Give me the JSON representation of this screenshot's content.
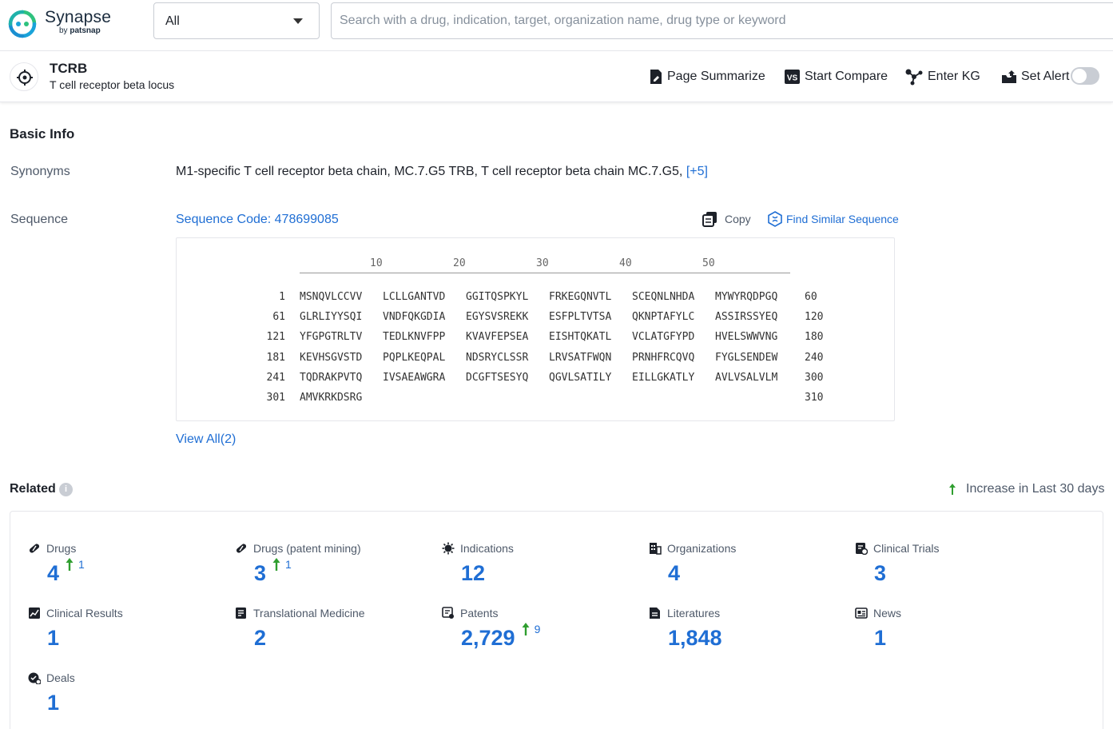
{
  "brand": {
    "name": "Synapse",
    "by": "by",
    "by_brand": "patsnap"
  },
  "search": {
    "scope": "All",
    "placeholder": "Search with a drug, indication, target, organization name, drug type or keyword"
  },
  "target": {
    "symbol": "TCRB",
    "name": "T cell receptor beta locus"
  },
  "actions": {
    "summarize": "Page Summarize",
    "compare": "Start Compare",
    "compare_badge": "VS",
    "kg": "Enter KG",
    "alert": "Set Alert",
    "alert_enabled": false
  },
  "basic_info": {
    "title": "Basic Info",
    "synonyms_label": "Synonyms",
    "synonyms": "M1-specific T cell receptor beta chain,  MC.7.G5 TRB,  T cell receptor beta chain MC.7.G5,",
    "synonyms_more": "[+5]",
    "sequence_label": "Sequence",
    "sequence_code": "Sequence Code: 478699085",
    "copy": "Copy",
    "find_similar": "Find Similar Sequence",
    "ruler": [
      "10",
      "20",
      "30",
      "40",
      "50"
    ],
    "rows": [
      {
        "start": "1",
        "segments": [
          "MSNQVLCCVV",
          "LCLLGANTVD",
          "GGITQSPKYL",
          "FRKEGQNVTL",
          "SCEQNLNHDA",
          "MYWYRQDPGQ"
        ],
        "end": "60"
      },
      {
        "start": "61",
        "segments": [
          "GLRLIYYSQI",
          "VNDFQKGDIA",
          "EGYSVSREKK",
          "ESFPLTVTSA",
          "QKNPTAFYLC",
          "ASSIRSSYEQ"
        ],
        "end": "120"
      },
      {
        "start": "121",
        "segments": [
          "YFGPGTRLTV",
          "TEDLKNVFPP",
          "KVAVFEPSEA",
          "EISHTQKATL",
          "VCLATGFYPD",
          "HVELSWWVNG"
        ],
        "end": "180"
      },
      {
        "start": "181",
        "segments": [
          "KEVHSGVSTD",
          "PQPLKEQPAL",
          "NDSRYCLSSR",
          "LRVSATFWQN",
          "PRNHFRCQVQ",
          "FYGLSENDEW"
        ],
        "end": "240"
      },
      {
        "start": "241",
        "segments": [
          "TQDRAKPVTQ",
          "IVSAEAWGRA",
          "DCGFTSESYQ",
          "QGVLSATILY",
          "EILLGKATLY",
          "AVLVSALVLM"
        ],
        "end": "300"
      },
      {
        "start": "301",
        "segments": [
          "AMVKRKDSRG",
          "",
          "",
          "",
          "",
          ""
        ],
        "end": "310"
      }
    ],
    "view_all": "View All(2)"
  },
  "related": {
    "title": "Related",
    "info": "i",
    "increase_label": "Increase in Last 30 days",
    "items": [
      {
        "label": "Drugs",
        "icon": "pill-icon",
        "value": "4",
        "delta": "1"
      },
      {
        "label": "Drugs (patent mining)",
        "icon": "pill-icon",
        "value": "3",
        "delta": "1"
      },
      {
        "label": "Indications",
        "icon": "virus-icon",
        "value": "12",
        "delta": ""
      },
      {
        "label": "Organizations",
        "icon": "building-icon",
        "value": "4",
        "delta": ""
      },
      {
        "label": "Clinical Trials",
        "icon": "clipboard-icon",
        "value": "3",
        "delta": ""
      },
      {
        "label": "Clinical Results",
        "icon": "chart-doc-icon",
        "value": "1",
        "delta": ""
      },
      {
        "label": "Translational Medicine",
        "icon": "document-icon",
        "value": "2",
        "delta": ""
      },
      {
        "label": "Patents",
        "icon": "patent-icon",
        "value": "2,729",
        "delta": "9"
      },
      {
        "label": "Literatures",
        "icon": "literature-icon",
        "value": "1,848",
        "delta": ""
      },
      {
        "label": "News",
        "icon": "news-icon",
        "value": "1",
        "delta": ""
      },
      {
        "label": "Deals",
        "icon": "deal-icon",
        "value": "1",
        "delta": ""
      }
    ]
  },
  "colors": {
    "accent": "#1f6ed4",
    "increase": "#2f9e2f",
    "muted": "#4e5969"
  }
}
